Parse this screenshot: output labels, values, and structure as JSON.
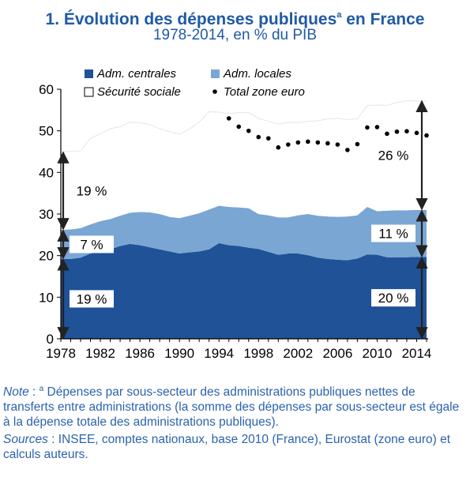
{
  "header": {
    "title_number": "1.",
    "title_text": "Évolution des dépenses publiques",
    "title_sup": "a",
    "title_suffix": "en France",
    "subtitle": "1978-2014, en % du PIB"
  },
  "colors": {
    "centrales": "#1f5297",
    "locales": "#7aa6d4",
    "securite": "#ffffff",
    "euro": "#000000",
    "arrow": "#222222",
    "text": "#1f5aa6"
  },
  "chart_data": {
    "type": "area",
    "xlabel": "",
    "ylabel": "",
    "xlim": [
      1978,
      2015
    ],
    "ylim": [
      0,
      60
    ],
    "y_ticks": [
      0,
      10,
      20,
      30,
      40,
      50,
      60
    ],
    "x_ticks": [
      1978,
      1982,
      1986,
      1990,
      1994,
      1998,
      2002,
      2006,
      2010,
      2014
    ],
    "stacked": true,
    "x": [
      1978,
      1979,
      1980,
      1981,
      1982,
      1983,
      1984,
      1985,
      1986,
      1987,
      1988,
      1989,
      1990,
      1991,
      1992,
      1993,
      1994,
      1995,
      1996,
      1997,
      1998,
      1999,
      2000,
      2001,
      2002,
      2003,
      2004,
      2005,
      2006,
      2007,
      2008,
      2009,
      2010,
      2011,
      2012,
      2013,
      2014,
      2015
    ],
    "series": [
      {
        "name": "Adm. centrales",
        "color_key": "centrales",
        "values": [
          19.2,
          19.2,
          19.5,
          20.5,
          21.0,
          21.5,
          22.3,
          22.8,
          22.5,
          22.0,
          21.5,
          21.0,
          20.5,
          20.8,
          21.0,
          21.5,
          23.0,
          22.5,
          22.3,
          21.9,
          21.6,
          20.9,
          20.2,
          20.5,
          20.5,
          20.1,
          19.5,
          19.2,
          19.0,
          18.9,
          19.3,
          20.3,
          20.2,
          19.6,
          19.6,
          19.6,
          19.7,
          19.7
        ]
      },
      {
        "name": "Adm. locales",
        "color_key": "locales",
        "values": [
          7.0,
          7.1,
          7.1,
          7.0,
          7.3,
          7.3,
          7.3,
          7.5,
          8.0,
          8.4,
          8.5,
          8.3,
          8.5,
          8.8,
          9.2,
          9.6,
          9.0,
          9.2,
          9.3,
          9.5,
          8.4,
          8.8,
          9.0,
          8.7,
          9.2,
          9.9,
          10.1,
          10.2,
          10.3,
          10.5,
          10.4,
          11.4,
          10.5,
          11.2,
          11.3,
          11.3,
          11.3,
          11.3
        ]
      },
      {
        "name": "Sécurité sociale",
        "color_key": "securite",
        "values": [
          18.8,
          18.8,
          18.6,
          20.7,
          21.0,
          21.7,
          21.4,
          21.8,
          21.5,
          21.1,
          20.5,
          20.5,
          20.2,
          20.8,
          21.9,
          23.5,
          22.5,
          22.4,
          22.8,
          23.0,
          23.0,
          22.6,
          22.4,
          22.9,
          22.3,
          22.3,
          22.8,
          23.5,
          23.7,
          23.3,
          23.2,
          24.4,
          25.5,
          25.3,
          25.9,
          26.3,
          26.2,
          26.2
        ]
      },
      {
        "name": "Total zone euro",
        "color_key": "euro",
        "kind": "points",
        "x": [
          1995,
          1996,
          1997,
          1998,
          1999,
          2000,
          2001,
          2002,
          2003,
          2004,
          2005,
          2006,
          2007,
          2008,
          2009,
          2010,
          2011,
          2012,
          2013,
          2014,
          2015
        ],
        "values": [
          53.0,
          51.0,
          50.0,
          48.5,
          48.2,
          46.0,
          46.7,
          47.2,
          47.4,
          47.2,
          47.0,
          46.7,
          45.4,
          46.8,
          50.8,
          50.9,
          49.3,
          49.8,
          49.9,
          49.5,
          48.9
        ]
      }
    ],
    "annotations": [
      {
        "text": "19 %",
        "from": 26.2,
        "to": 45.0,
        "x": 1978,
        "side": "left"
      },
      {
        "text": "7 %",
        "from": 19.2,
        "to": 26.2,
        "x": 1978,
        "side": "left"
      },
      {
        "text": "19 %",
        "from": 0,
        "to": 19.2,
        "x": 1978,
        "side": "left"
      },
      {
        "text": "26 %",
        "from": 31.0,
        "to": 57.3,
        "x": 2015,
        "side": "right"
      },
      {
        "text": "11 %",
        "from": 19.7,
        "to": 31.0,
        "x": 2015,
        "side": "right"
      },
      {
        "text": "20 %",
        "from": 0,
        "to": 19.7,
        "x": 2015,
        "side": "right"
      }
    ],
    "legend_placement": "top-left inside plot"
  },
  "notes": {
    "note_label": "Note",
    "note_sep": " : ",
    "note_sup": "a",
    "note_text": " Dépenses par sous-secteur des administrations publiques nettes de transferts entre administrations (la somme des dépenses par sous-secteur est égale à la dépense totale des administrations publiques).",
    "sources_label": "Sources",
    "sources_sep": " : ",
    "sources_text": "INSEE, comptes nationaux, base 2010 (France), Eurostat (zone euro) et calculs auteurs."
  }
}
